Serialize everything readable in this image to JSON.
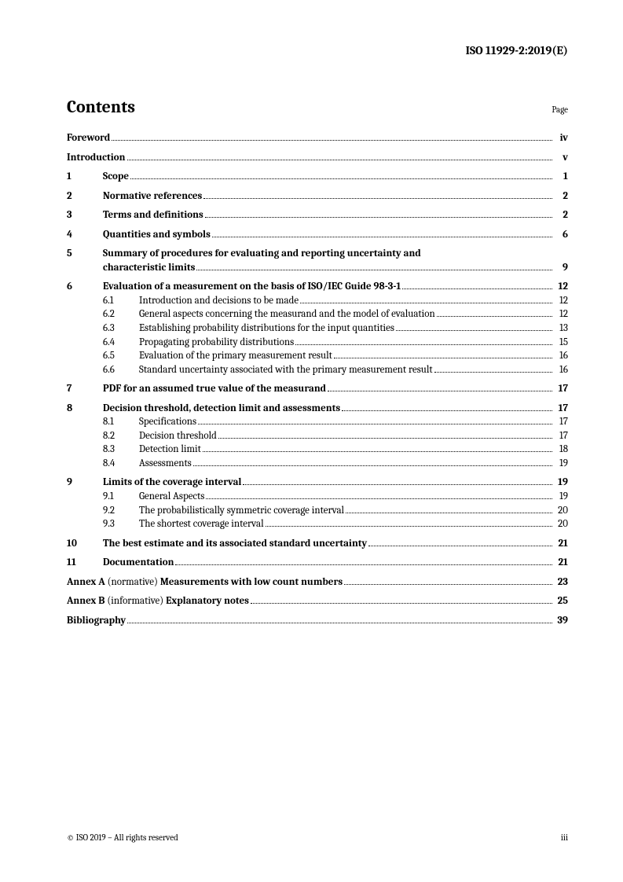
{
  "doc_id": "ISO 11929-2:2019(E)",
  "contents_title": "Contents",
  "page_label": "Page",
  "entries": [
    {
      "type": "front",
      "title": "Foreword",
      "page": "iv"
    },
    {
      "type": "front",
      "title": "Introduction",
      "page": "v"
    },
    {
      "type": "section",
      "num": "1",
      "title": "Scope",
      "page": "1"
    },
    {
      "type": "section",
      "num": "2",
      "title": "Normative references",
      "page": "2"
    },
    {
      "type": "section",
      "num": "3",
      "title": "Terms and definitions",
      "page": "2"
    },
    {
      "type": "section",
      "num": "4",
      "title": "Quantities and symbols",
      "page": "6"
    },
    {
      "type": "section-multiline",
      "num": "5",
      "title_line1": "Summary of procedures for evaluating and reporting uncertainty and",
      "title_line2": "characteristic limits",
      "page": "9"
    },
    {
      "type": "section",
      "num": "6",
      "title": "Evaluation of a measurement on the basis of ISO/IEC Guide 98-3-1",
      "page": "12"
    },
    {
      "type": "sub",
      "num": "6.1",
      "title": "Introduction and decisions to be made",
      "page": "12"
    },
    {
      "type": "sub",
      "num": "6.2",
      "title": "General aspects concerning the measurand and the model of evaluation",
      "page": "12"
    },
    {
      "type": "sub",
      "num": "6.3",
      "title": "Establishing probability distributions for the input quantities",
      "page": "13"
    },
    {
      "type": "sub",
      "num": "6.4",
      "title": "Propagating probability distributions",
      "page": "15"
    },
    {
      "type": "sub",
      "num": "6.5",
      "title": "Evaluation of the primary measurement result",
      "page": "16"
    },
    {
      "type": "sub",
      "num": "6.6",
      "title": "Standard uncertainty associated with the primary measurement result",
      "page": "16"
    },
    {
      "type": "section",
      "num": "7",
      "title": "PDF for an assumed true value of the measurand",
      "page": "17"
    },
    {
      "type": "section",
      "num": "8",
      "title": "Decision threshold, detection limit and assessments",
      "page": "17"
    },
    {
      "type": "sub",
      "num": "8.1",
      "title": "Specifications",
      "page": "17"
    },
    {
      "type": "sub",
      "num": "8.2",
      "title": "Decision threshold",
      "page": "17"
    },
    {
      "type": "sub",
      "num": "8.3",
      "title": "Detection limit",
      "page": "18"
    },
    {
      "type": "sub",
      "num": "8.4",
      "title": "Assessments",
      "page": "19"
    },
    {
      "type": "section",
      "num": "9",
      "title": "Limits of the coverage interval",
      "page": "19"
    },
    {
      "type": "sub",
      "num": "9.1",
      "title": "General Aspects",
      "page": "19"
    },
    {
      "type": "sub",
      "num": "9.2",
      "title": "The probabilistically symmetric coverage interval",
      "page": "20"
    },
    {
      "type": "sub",
      "num": "9.3",
      "title": "The shortest coverage interval",
      "page": "20"
    },
    {
      "type": "section",
      "num": "10",
      "title": "The best estimate and its associated standard uncertainty",
      "page": "21"
    },
    {
      "type": "section",
      "num": "11",
      "title": "Documentation",
      "page": "21"
    },
    {
      "type": "annex",
      "prefix": "Annex A",
      "paren": " (normative) ",
      "title": "Measurements with low count numbers",
      "page": "23"
    },
    {
      "type": "annex",
      "prefix": "Annex B",
      "paren": " (informative) ",
      "title": "Explanatory notes",
      "page": "25"
    },
    {
      "type": "front",
      "title": "Bibliography",
      "page": "39"
    }
  ],
  "footer_left": "© ISO 2019 – All rights reserved",
  "footer_right": "iii"
}
